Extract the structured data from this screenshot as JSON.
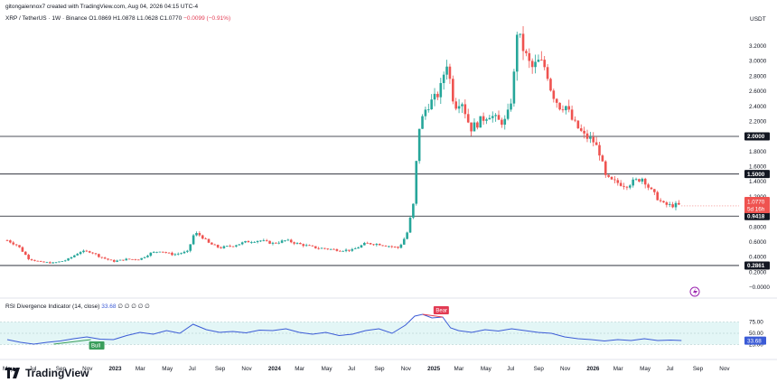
{
  "header": {
    "attribution": "gitongaiennox7 created with TradingView.com, Aug 04, 2026 04:15 UTC-4",
    "symbol": "XRP / TetherUS · 1W · Binance",
    "ohlc": "O1.0869 H1.0878 L1.0628 C1.0770",
    "change": "−0.0099 (−0.91%)",
    "currency": "USDT"
  },
  "rsi": {
    "title": "RSI Divergence Indicator (14, close)",
    "value": "33.68",
    "dots": "∅ ∅ ∅ ∅ ∅",
    "levels": [
      75,
      50,
      25
    ],
    "labels": {
      "bull": "Bull",
      "bear": "Bear"
    },
    "current_label": "33.68",
    "colors": {
      "line": "#3b5bd6",
      "band": "#e3f6f6",
      "bull": "#3a9e5c",
      "bear": "#e23b53"
    }
  },
  "brand": {
    "name": "TradingView"
  },
  "price_axis": {
    "ticks": [
      "3.2000",
      "3.0000",
      "2.8000",
      "2.6000",
      "2.4000",
      "2.2000",
      "1.8000",
      "1.6000",
      "1.4000",
      "1.2000",
      "0.8000",
      "0.6000",
      "0.4000",
      "0.2000",
      "−0.0000"
    ],
    "tick_values": [
      3.2,
      3.0,
      2.8,
      2.6,
      2.4,
      2.2,
      1.8,
      1.6,
      1.4,
      1.2,
      0.8,
      0.6,
      0.4,
      0.2,
      0.0
    ],
    "level_labels": [
      {
        "text": "2.0000",
        "value": 2.0
      },
      {
        "text": "1.5000",
        "value": 1.5
      },
      {
        "text": "0.9418",
        "value": 0.9418
      },
      {
        "text": "0.2861",
        "value": 0.2861
      }
    ],
    "last_price": {
      "text": "1.0770",
      "countdown": "5d 16h",
      "value": 1.077
    }
  },
  "time_axis": {
    "labels": [
      "May",
      "Jul",
      "Sep",
      "Nov",
      "2023",
      "Mar",
      "May",
      "Jul",
      "Sep",
      "Nov",
      "2024",
      "Mar",
      "May",
      "Jul",
      "Sep",
      "Nov",
      "2025",
      "Mar",
      "May",
      "Jul",
      "Sep",
      "Nov",
      "2026",
      "Mar",
      "May",
      "Jul",
      "Sep",
      "Nov"
    ],
    "months": [
      0,
      2,
      4,
      6,
      8,
      10,
      12,
      14,
      16,
      18,
      20,
      22,
      24,
      26,
      28,
      30,
      32,
      34,
      36,
      38,
      40,
      42,
      44,
      46,
      48,
      50,
      52,
      54
    ],
    "bold": [
      "2023",
      "2024",
      "2025",
      "2026"
    ]
  },
  "chart_data": {
    "type": "candlestick",
    "title": "XRP / TetherUS · 1W · Binance",
    "x_unit": "months since May 2022",
    "ylim": [
      -0.05,
      3.45
    ],
    "colors": {
      "up": "#26a69a",
      "down": "#ef5350",
      "level_line": "#131722"
    },
    "horizontal_levels": [
      2.0,
      1.5,
      0.9418,
      0.2861
    ],
    "price_path": [
      [
        0,
        0.62
      ],
      [
        0.8,
        0.55
      ],
      [
        1.6,
        0.38
      ],
      [
        2.5,
        0.33
      ],
      [
        3.5,
        0.32
      ],
      [
        4.5,
        0.36
      ],
      [
        5.5,
        0.47
      ],
      [
        6.3,
        0.47
      ],
      [
        7,
        0.4
      ],
      [
        8,
        0.34
      ],
      [
        9,
        0.37
      ],
      [
        10,
        0.37
      ],
      [
        10.8,
        0.45
      ],
      [
        11.5,
        0.48
      ],
      [
        12.5,
        0.43
      ],
      [
        13.6,
        0.47
      ],
      [
        14.1,
        0.72
      ],
      [
        14.6,
        0.68
      ],
      [
        15.2,
        0.58
      ],
      [
        16,
        0.52
      ],
      [
        17,
        0.55
      ],
      [
        18,
        0.6
      ],
      [
        19,
        0.62
      ],
      [
        20,
        0.58
      ],
      [
        21,
        0.62
      ],
      [
        22,
        0.57
      ],
      [
        23.3,
        0.52
      ],
      [
        24,
        0.51
      ],
      [
        25,
        0.49
      ],
      [
        26,
        0.49
      ],
      [
        27,
        0.58
      ],
      [
        28,
        0.57
      ],
      [
        29.5,
        0.52
      ],
      [
        30.1,
        0.7
      ],
      [
        30.6,
        1.1
      ],
      [
        31,
        2.1
      ],
      [
        31.6,
        2.4
      ],
      [
        32.2,
        2.5
      ],
      [
        32.6,
        2.6
      ],
      [
        33.1,
        3.0
      ],
      [
        33.7,
        2.4
      ],
      [
        34.2,
        2.5
      ],
      [
        34.9,
        2.1
      ],
      [
        35.6,
        2.2
      ],
      [
        36.3,
        2.3
      ],
      [
        37,
        2.2
      ],
      [
        37.6,
        2.2
      ],
      [
        38.1,
        2.6
      ],
      [
        38.4,
        3.4
      ],
      [
        39,
        3.1
      ],
      [
        39.5,
        2.9
      ],
      [
        40.1,
        3.0
      ],
      [
        40.6,
        2.9
      ],
      [
        41,
        2.6
      ],
      [
        41.6,
        2.4
      ],
      [
        42.1,
        2.4
      ],
      [
        42.6,
        2.2
      ],
      [
        43.5,
        2.0
      ],
      [
        44.1,
        1.95
      ],
      [
        44.6,
        1.8
      ],
      [
        45.1,
        1.45
      ],
      [
        45.6,
        1.4
      ],
      [
        46.1,
        1.38
      ],
      [
        46.6,
        1.35
      ],
      [
        47.2,
        1.4
      ],
      [
        47.9,
        1.45
      ],
      [
        48.4,
        1.3
      ],
      [
        48.9,
        1.2
      ],
      [
        49.4,
        1.1
      ],
      [
        50,
        1.08
      ],
      [
        50.4,
        1.09
      ],
      [
        50.8,
        1.08
      ]
    ],
    "rsi_series": [
      [
        0,
        36
      ],
      [
        1,
        30
      ],
      [
        2,
        26
      ],
      [
        3,
        30
      ],
      [
        4,
        33
      ],
      [
        5,
        38
      ],
      [
        6,
        42
      ],
      [
        7,
        37
      ],
      [
        8,
        36
      ],
      [
        9,
        45
      ],
      [
        10,
        52
      ],
      [
        11,
        48
      ],
      [
        12,
        56
      ],
      [
        13,
        50
      ],
      [
        14,
        70
      ],
      [
        15,
        58
      ],
      [
        16,
        52
      ],
      [
        17,
        54
      ],
      [
        18,
        51
      ],
      [
        19,
        57
      ],
      [
        20,
        56
      ],
      [
        21,
        60
      ],
      [
        22,
        52
      ],
      [
        23,
        48
      ],
      [
        24,
        52
      ],
      [
        25,
        45
      ],
      [
        26,
        48
      ],
      [
        27,
        56
      ],
      [
        28,
        60
      ],
      [
        29,
        50
      ],
      [
        30,
        68
      ],
      [
        30.7,
        88
      ],
      [
        31.3,
        92
      ],
      [
        32,
        84
      ],
      [
        32.8,
        86
      ],
      [
        33.4,
        62
      ],
      [
        34,
        56
      ],
      [
        35,
        52
      ],
      [
        36,
        58
      ],
      [
        37,
        55
      ],
      [
        38,
        60
      ],
      [
        39,
        56
      ],
      [
        40,
        52
      ],
      [
        41,
        50
      ],
      [
        42,
        42
      ],
      [
        43,
        38
      ],
      [
        44,
        36
      ],
      [
        45,
        33
      ],
      [
        46,
        36
      ],
      [
        47,
        34
      ],
      [
        48,
        38
      ],
      [
        49,
        34
      ],
      [
        50,
        35
      ],
      [
        50.8,
        34
      ]
    ],
    "divergences": [
      {
        "type": "bull",
        "points": [
          [
            3.5,
            26
          ],
          [
            6.3,
            36
          ]
        ]
      },
      {
        "type": "bear",
        "points": [
          [
            31.3,
            92
          ],
          [
            32.8,
            86
          ]
        ]
      }
    ]
  }
}
